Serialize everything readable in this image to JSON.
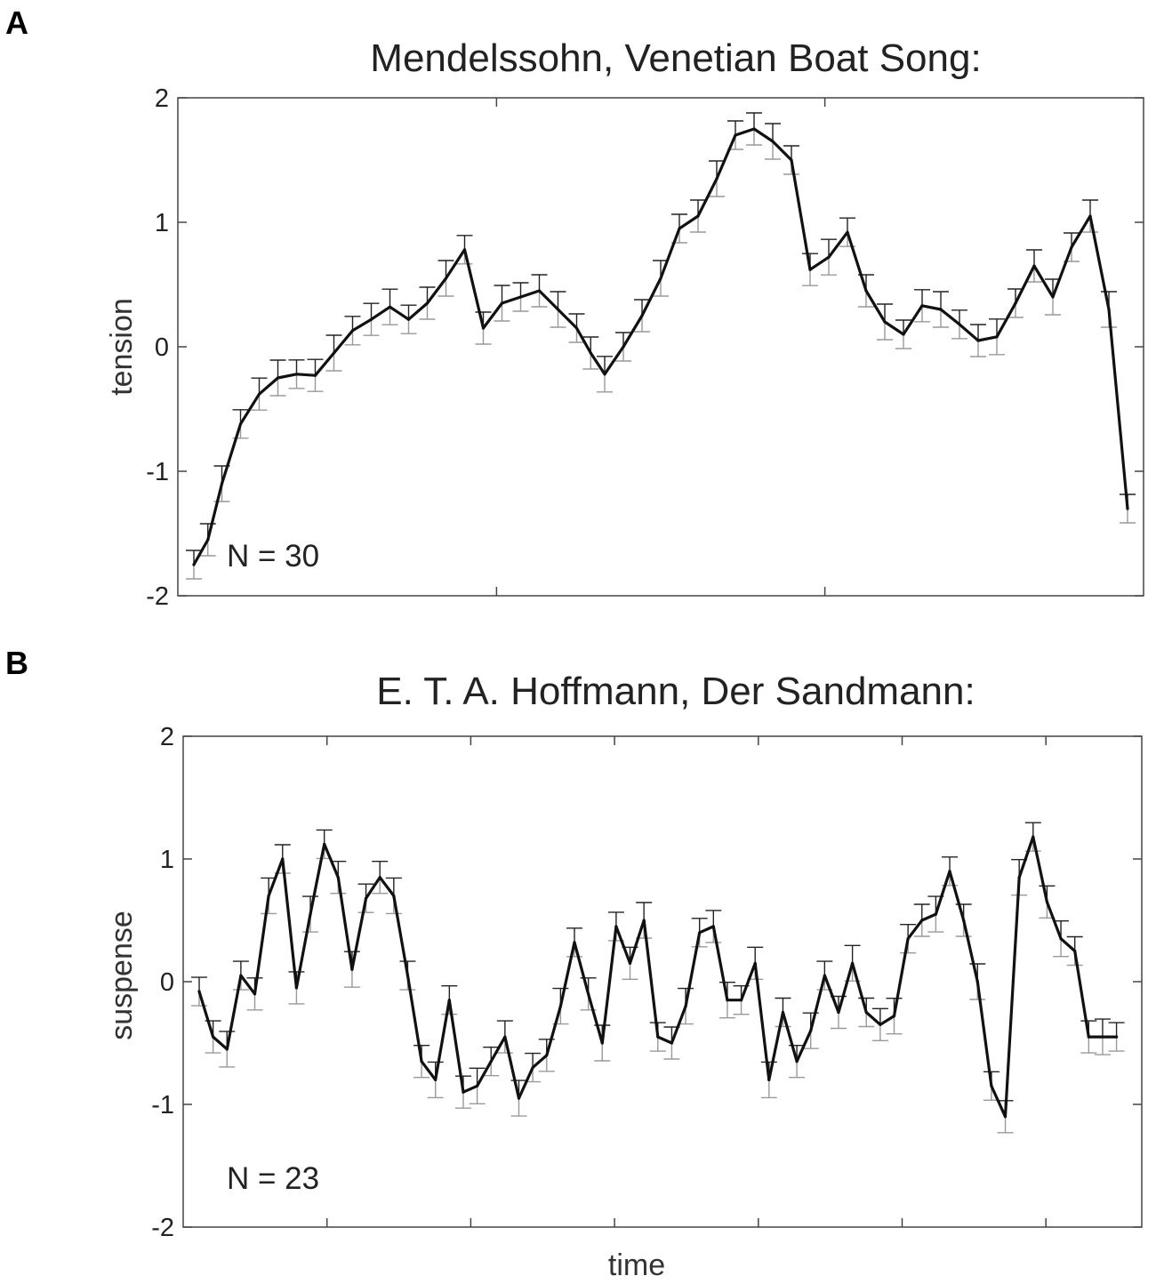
{
  "chart_data": [
    {
      "type": "line",
      "panel": "A",
      "title": "Mendelssohn, Venetian Boat Song:",
      "xlabel": "",
      "ylabel": "tension",
      "ylim": [
        -2,
        2
      ],
      "yticks": [
        -2,
        -1,
        0,
        1,
        2
      ],
      "annotation": "N = 30",
      "grid": false,
      "series": [
        {
          "x": [
            0,
            1.5,
            3,
            5,
            7,
            9,
            11,
            13,
            15,
            17,
            19,
            21,
            23,
            25,
            27,
            29,
            31,
            33,
            35,
            37,
            39,
            41,
            42.5,
            44,
            46,
            48,
            50,
            52,
            54,
            56,
            58,
            60,
            62,
            64,
            66,
            68,
            70,
            72,
            74,
            76,
            78,
            80,
            82,
            84,
            86,
            88,
            90,
            92,
            94,
            96,
            98,
            100
          ],
          "y": [
            -1.75,
            -1.55,
            -1.1,
            -0.62,
            -0.38,
            -0.25,
            -0.22,
            -0.23,
            -0.05,
            0.13,
            0.22,
            0.32,
            0.22,
            0.35,
            0.55,
            0.78,
            0.15,
            0.35,
            0.4,
            0.45,
            0.3,
            0.15,
            -0.05,
            -0.22,
            0.0,
            0.25,
            0.55,
            0.95,
            1.05,
            1.35,
            1.7,
            1.75,
            1.65,
            1.5,
            0.62,
            0.72,
            0.92,
            0.45,
            0.2,
            0.1,
            0.33,
            0.3,
            0.18,
            0.05,
            0.08,
            0.35,
            0.65,
            0.4,
            0.8,
            1.05,
            0.3,
            -1.3
          ]
        }
      ]
    },
    {
      "type": "line",
      "panel": "B",
      "title": "E. T. A. Hoffmann, Der Sandmann:",
      "xlabel": "time",
      "ylabel": "suspense",
      "ylim": [
        -2,
        2
      ],
      "yticks": [
        -2,
        -1,
        0,
        1,
        2
      ],
      "annotation": "N = 23",
      "grid": false,
      "series": [
        {
          "x": [
            0,
            1.5,
            3,
            4.5,
            6,
            7.5,
            9,
            10.5,
            12,
            13.5,
            15,
            16.5,
            18,
            19.5,
            21,
            22.5,
            24,
            25.5,
            27,
            28.5,
            30,
            31.5,
            33,
            34.5,
            36,
            37.5,
            39,
            40.5,
            42,
            43.5,
            45,
            46.5,
            48,
            49.5,
            51,
            52.5,
            54,
            55.5,
            57,
            58.5,
            60,
            61.5,
            63,
            64.5,
            66,
            67.5,
            69,
            70.5,
            72,
            73.5,
            75,
            76.5,
            78,
            79.5,
            81,
            82.5,
            84,
            85.5,
            87,
            88.5,
            90,
            91.5,
            93,
            94.5,
            96,
            97.5,
            99
          ],
          "y": [
            -0.08,
            -0.45,
            -0.55,
            0.05,
            -0.1,
            0.7,
            1.0,
            -0.05,
            0.55,
            1.12,
            0.85,
            0.1,
            0.68,
            0.85,
            0.7,
            0.05,
            -0.65,
            -0.8,
            -0.15,
            -0.9,
            -0.85,
            -0.65,
            -0.45,
            -0.95,
            -0.7,
            -0.6,
            -0.2,
            0.32,
            -0.1,
            -0.5,
            0.45,
            0.15,
            0.5,
            -0.45,
            -0.5,
            -0.2,
            0.4,
            0.45,
            -0.15,
            -0.15,
            0.15,
            -0.8,
            -0.25,
            -0.65,
            -0.4,
            0.05,
            -0.25,
            0.15,
            -0.25,
            -0.35,
            -0.28,
            0.35,
            0.5,
            0.55,
            0.9,
            0.5,
            0.0,
            -0.85,
            -1.1,
            0.85,
            1.18,
            0.65,
            0.35,
            0.25,
            -0.45,
            -0.45,
            -0.45
          ]
        }
      ]
    }
  ]
}
